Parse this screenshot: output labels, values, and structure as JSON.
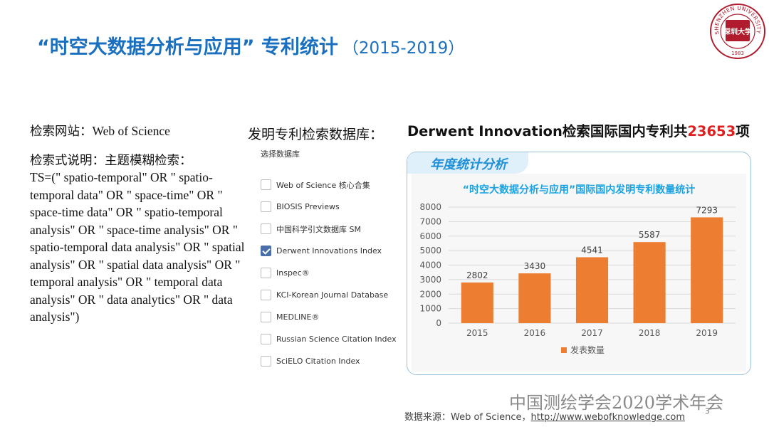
{
  "title": {
    "main": "“时空大数据分析与应用” 专利统计",
    "years": "（2015-2019）"
  },
  "logo": {
    "ring_text": "SHENZHEN UNIVERSITY",
    "emblem_text": "深圳大学",
    "year": "1983"
  },
  "search": {
    "site_line": "检索网站：Web of Science",
    "query_label": "检索式说明：主题模糊检索：",
    "query_text": "TS=(\" spatio-temporal\"  OR \" spatio-temporal data\"  OR \" space-time\"  OR \" space-time data\"  OR \" spatio-temporal analysis\" OR \" space-time analysis\"   OR \" spatio-temporal data analysis\"  OR \" spatial analysis\"  OR \" spatial data analysis\"  OR \" temporal analysis\"  OR \" temporal data analysis\"  OR \" data analytics\"  OR \" data analysis\")"
  },
  "databases": {
    "heading": "发明专利检索数据库：",
    "subheading": "选择数据库",
    "items": [
      {
        "label": "Web of Science 核心合集",
        "checked": false
      },
      {
        "label": "BIOSIS Previews",
        "checked": false
      },
      {
        "label": "中国科学引文数据库 SM",
        "checked": false
      },
      {
        "label": "Derwent Innovations Index",
        "checked": true
      },
      {
        "label": "Inspec®",
        "checked": false
      },
      {
        "label": "KCI-Korean Journal Database",
        "checked": false
      },
      {
        "label": "MEDLINE®",
        "checked": false
      },
      {
        "label": "Russian Science Citation Index",
        "checked": false
      },
      {
        "label": "SciELO Citation Index",
        "checked": false
      }
    ]
  },
  "derwent": {
    "prefix": "Derwent Innovation检索国际国内专利共",
    "count": "23653",
    "suffix": "项"
  },
  "panel": {
    "header": "年度统计分析"
  },
  "chart_data": {
    "type": "bar",
    "title": "“时空大数据分析与应用”国际国内发明专利数量统计",
    "categories": [
      "2015",
      "2016",
      "2017",
      "2018",
      "2019"
    ],
    "series": [
      {
        "name": "发表数量",
        "values": [
          2802,
          3430,
          4541,
          5587,
          7293
        ],
        "color": "#ed7d31"
      }
    ],
    "yticks": [
      0,
      1000,
      2000,
      3000,
      4000,
      5000,
      6000,
      7000,
      8000
    ],
    "ylim": [
      0,
      8000
    ],
    "grid": true,
    "legend": "bottom"
  },
  "footer": {
    "event": "中国测绘学会2020学术年会",
    "source_prefix": "数据来源：Web of Science，",
    "source_url": "http://www.webofknowledge.com",
    "page": "3"
  }
}
